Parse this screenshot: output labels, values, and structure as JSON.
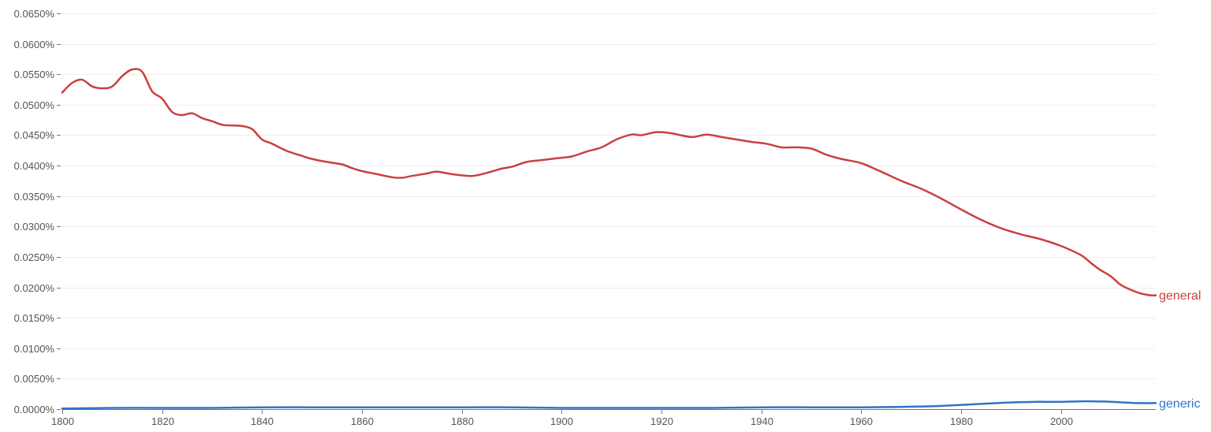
{
  "chart_data": {
    "type": "line",
    "title": "",
    "xlabel": "",
    "ylabel": "",
    "xlim": [
      1800,
      2019
    ],
    "ylim": [
      0,
      0.065
    ],
    "y_unit": "percent",
    "grid": true,
    "legend": "inline-right",
    "x_ticks": [
      "1800",
      "1820",
      "1840",
      "1860",
      "1880",
      "1900",
      "1920",
      "1940",
      "1960",
      "1980",
      "2000"
    ],
    "y_ticks": [
      "0.0000%",
      "0.0050%",
      "0.0100%",
      "0.0150%",
      "0.0200%",
      "0.0250%",
      "0.0300%",
      "0.0350%",
      "0.0400%",
      "0.0450%",
      "0.0500%",
      "0.0550%",
      "0.0600%",
      "0.0650%"
    ],
    "series": [
      {
        "name": "general",
        "color": "#c94040",
        "x": [
          1800,
          1802,
          1804,
          1806,
          1808,
          1810,
          1812,
          1814,
          1816,
          1818,
          1820,
          1822,
          1824,
          1826,
          1828,
          1830,
          1832,
          1834,
          1836,
          1838,
          1840,
          1842,
          1845,
          1848,
          1850,
          1853,
          1856,
          1858,
          1860,
          1863,
          1866,
          1868,
          1870,
          1873,
          1875,
          1878,
          1882,
          1885,
          1888,
          1890,
          1893,
          1896,
          1899,
          1902,
          1905,
          1908,
          1911,
          1914,
          1916,
          1919,
          1922,
          1926,
          1929,
          1932,
          1935,
          1938,
          1941,
          1944,
          1947,
          1950,
          1953,
          1956,
          1960,
          1964,
          1968,
          1972,
          1976,
          1980,
          1984,
          1988,
          1992,
          1996,
          2000,
          2004,
          2006,
          2008,
          2010,
          2012,
          2014,
          2016,
          2018,
          2019
        ],
        "y": [
          0.052,
          0.0536,
          0.0541,
          0.053,
          0.0527,
          0.053,
          0.0547,
          0.0558,
          0.0554,
          0.0522,
          0.051,
          0.0488,
          0.0483,
          0.0486,
          0.0478,
          0.0473,
          0.0467,
          0.0466,
          0.0465,
          0.046,
          0.0443,
          0.0436,
          0.0424,
          0.0416,
          0.0411,
          0.0406,
          0.0402,
          0.0396,
          0.0391,
          0.0386,
          0.0381,
          0.038,
          0.0383,
          0.0387,
          0.039,
          0.0386,
          0.0383,
          0.0388,
          0.0395,
          0.0398,
          0.0406,
          0.0409,
          0.0412,
          0.0415,
          0.0423,
          0.043,
          0.0443,
          0.0451,
          0.045,
          0.0455,
          0.0453,
          0.0447,
          0.0451,
          0.0447,
          0.0443,
          0.0439,
          0.0436,
          0.043,
          0.043,
          0.0428,
          0.0418,
          0.0411,
          0.0404,
          0.039,
          0.0375,
          0.0362,
          0.0346,
          0.0328,
          0.0311,
          0.0297,
          0.0287,
          0.0279,
          0.0268,
          0.0253,
          0.024,
          0.0228,
          0.0218,
          0.0204,
          0.0196,
          0.019,
          0.0187,
          0.0187
        ]
      },
      {
        "name": "generic",
        "color": "#2f75c4",
        "x": [
          1800,
          1810,
          1820,
          1830,
          1840,
          1850,
          1860,
          1870,
          1880,
          1890,
          1900,
          1910,
          1920,
          1930,
          1940,
          1950,
          1960,
          1970,
          1975,
          1980,
          1985,
          1990,
          1995,
          2000,
          2005,
          2010,
          2015,
          2019
        ],
        "y": [
          0.0001,
          0.0002,
          0.0002,
          0.0002,
          0.0003,
          0.0003,
          0.0003,
          0.0003,
          0.0003,
          0.0003,
          0.0002,
          0.0002,
          0.0002,
          0.0002,
          0.0003,
          0.0003,
          0.0003,
          0.0004,
          0.0005,
          0.0007,
          0.0009,
          0.0011,
          0.0012,
          0.0012,
          0.0013,
          0.0012,
          0.001,
          0.001
        ]
      }
    ]
  }
}
